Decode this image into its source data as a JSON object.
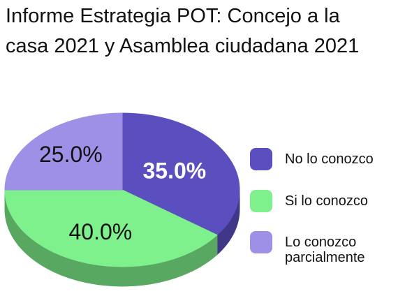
{
  "chart_data": {
    "type": "pie",
    "title": "Informe Estrategia POT: Concejo a la casa 2021 y Asamblea ciudadana 2021",
    "categories": [
      "No lo conozco",
      "Si lo conozco",
      "Lo conozco parcialmente"
    ],
    "values": [
      35,
      40,
      25
    ],
    "value_labels": [
      "35.0%",
      "40.0%",
      "25.0%"
    ],
    "colors": [
      "#5b4fc0",
      "#7ef08c",
      "#9d90e6"
    ]
  }
}
